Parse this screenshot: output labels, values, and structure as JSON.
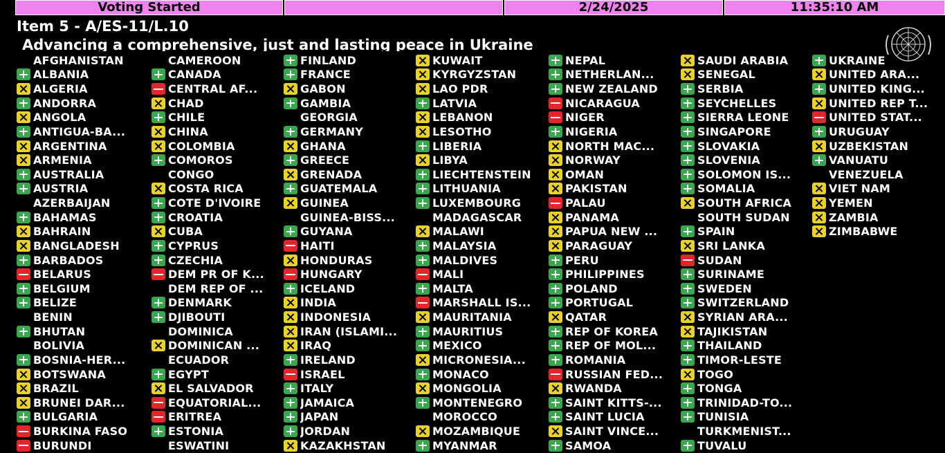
{
  "header": {
    "status": "Voting Started",
    "date": "2/24/2025",
    "time": "11:35:10 AM"
  },
  "item_title": "Item 5 - A/ES-11/L.10",
  "subject": "Advancing a comprehensive, just and lasting peace in Ukraine",
  "colors": {
    "yes": "#37a84e",
    "no": "#e4252a",
    "abstain": "#e8d227",
    "header": "#ef82ef"
  },
  "columns": [
    [
      {
        "name": "AFGHANISTAN",
        "vote": "none"
      },
      {
        "name": "ALBANIA",
        "vote": "yes"
      },
      {
        "name": "ALGERIA",
        "vote": "abstain"
      },
      {
        "name": "ANDORRA",
        "vote": "yes"
      },
      {
        "name": "ANGOLA",
        "vote": "abstain"
      },
      {
        "name": "ANTIGUA-BA...",
        "vote": "yes"
      },
      {
        "name": "ARGENTINA",
        "vote": "abstain"
      },
      {
        "name": "ARMENIA",
        "vote": "abstain"
      },
      {
        "name": "AUSTRALIA",
        "vote": "yes"
      },
      {
        "name": "AUSTRIA",
        "vote": "yes"
      },
      {
        "name": "AZERBAIJAN",
        "vote": "none"
      },
      {
        "name": "BAHAMAS",
        "vote": "yes"
      },
      {
        "name": "BAHRAIN",
        "vote": "abstain"
      },
      {
        "name": "BANGLADESH",
        "vote": "abstain"
      },
      {
        "name": "BARBADOS",
        "vote": "yes"
      },
      {
        "name": "BELARUS",
        "vote": "no"
      },
      {
        "name": "BELGIUM",
        "vote": "yes"
      },
      {
        "name": "BELIZE",
        "vote": "yes"
      },
      {
        "name": "BENIN",
        "vote": "none"
      },
      {
        "name": "BHUTAN",
        "vote": "yes"
      },
      {
        "name": "BOLIVIA",
        "vote": "none"
      },
      {
        "name": "BOSNIA-HER...",
        "vote": "yes"
      },
      {
        "name": "BOTSWANA",
        "vote": "abstain"
      },
      {
        "name": "BRAZIL",
        "vote": "abstain"
      },
      {
        "name": "BRUNEI DAR...",
        "vote": "abstain"
      },
      {
        "name": "BULGARIA",
        "vote": "yes"
      },
      {
        "name": "BURKINA FASO",
        "vote": "no"
      },
      {
        "name": "BURUNDI",
        "vote": "no"
      }
    ],
    [
      {
        "name": "CAMEROON",
        "vote": "none"
      },
      {
        "name": "CANADA",
        "vote": "yes"
      },
      {
        "name": "CENTRAL AF...",
        "vote": "no"
      },
      {
        "name": "CHAD",
        "vote": "abstain"
      },
      {
        "name": "CHILE",
        "vote": "yes"
      },
      {
        "name": "CHINA",
        "vote": "abstain"
      },
      {
        "name": "COLOMBIA",
        "vote": "abstain"
      },
      {
        "name": "COMOROS",
        "vote": "yes"
      },
      {
        "name": "CONGO",
        "vote": "none"
      },
      {
        "name": "COSTA RICA",
        "vote": "abstain"
      },
      {
        "name": "COTE D'IVOIRE",
        "vote": "yes"
      },
      {
        "name": "CROATIA",
        "vote": "yes"
      },
      {
        "name": "CUBA",
        "vote": "abstain"
      },
      {
        "name": "CYPRUS",
        "vote": "yes"
      },
      {
        "name": "CZECHIA",
        "vote": "yes"
      },
      {
        "name": "DEM PR OF K...",
        "vote": "no"
      },
      {
        "name": "DEM REP OF ...",
        "vote": "none"
      },
      {
        "name": "DENMARK",
        "vote": "yes"
      },
      {
        "name": "DJIBOUTI",
        "vote": "yes"
      },
      {
        "name": "DOMINICA",
        "vote": "none"
      },
      {
        "name": "DOMINICAN ...",
        "vote": "abstain"
      },
      {
        "name": "ECUADOR",
        "vote": "none"
      },
      {
        "name": "EGYPT",
        "vote": "yes"
      },
      {
        "name": "EL SALVADOR",
        "vote": "abstain"
      },
      {
        "name": "EQUATORIAL...",
        "vote": "no"
      },
      {
        "name": "ERITREA",
        "vote": "no"
      },
      {
        "name": "ESTONIA",
        "vote": "yes"
      },
      {
        "name": "ESWATINI",
        "vote": "none"
      }
    ],
    [
      {
        "name": "FINLAND",
        "vote": "yes"
      },
      {
        "name": "FRANCE",
        "vote": "yes"
      },
      {
        "name": "GABON",
        "vote": "abstain"
      },
      {
        "name": "GAMBIA",
        "vote": "yes"
      },
      {
        "name": "GEORGIA",
        "vote": "none"
      },
      {
        "name": "GERMANY",
        "vote": "yes"
      },
      {
        "name": "GHANA",
        "vote": "abstain"
      },
      {
        "name": "GREECE",
        "vote": "yes"
      },
      {
        "name": "GRENADA",
        "vote": "abstain"
      },
      {
        "name": "GUATEMALA",
        "vote": "yes"
      },
      {
        "name": "GUINEA",
        "vote": "abstain"
      },
      {
        "name": "GUINEA-BISS...",
        "vote": "none"
      },
      {
        "name": "GUYANA",
        "vote": "yes"
      },
      {
        "name": "HAITI",
        "vote": "no"
      },
      {
        "name": "HONDURAS",
        "vote": "abstain"
      },
      {
        "name": "HUNGARY",
        "vote": "no"
      },
      {
        "name": "ICELAND",
        "vote": "yes"
      },
      {
        "name": "INDIA",
        "vote": "abstain"
      },
      {
        "name": "INDONESIA",
        "vote": "abstain"
      },
      {
        "name": "IRAN (ISLAMI...",
        "vote": "abstain"
      },
      {
        "name": "IRAQ",
        "vote": "abstain"
      },
      {
        "name": "IRELAND",
        "vote": "yes"
      },
      {
        "name": "ISRAEL",
        "vote": "no"
      },
      {
        "name": "ITALY",
        "vote": "yes"
      },
      {
        "name": "JAMAICA",
        "vote": "yes"
      },
      {
        "name": "JAPAN",
        "vote": "yes"
      },
      {
        "name": "JORDAN",
        "vote": "yes"
      },
      {
        "name": "KAZAKHSTAN",
        "vote": "abstain"
      }
    ],
    [
      {
        "name": "KUWAIT",
        "vote": "abstain"
      },
      {
        "name": "KYRGYZSTAN",
        "vote": "abstain"
      },
      {
        "name": "LAO PDR",
        "vote": "abstain"
      },
      {
        "name": "LATVIA",
        "vote": "yes"
      },
      {
        "name": "LEBANON",
        "vote": "abstain"
      },
      {
        "name": "LESOTHO",
        "vote": "abstain"
      },
      {
        "name": "LIBERIA",
        "vote": "yes"
      },
      {
        "name": "LIBYA",
        "vote": "abstain"
      },
      {
        "name": "LIECHTENSTEIN",
        "vote": "yes"
      },
      {
        "name": "LITHUANIA",
        "vote": "yes"
      },
      {
        "name": "LUXEMBOURG",
        "vote": "yes"
      },
      {
        "name": "MADAGASCAR",
        "vote": "none"
      },
      {
        "name": "MALAWI",
        "vote": "abstain"
      },
      {
        "name": "MALAYSIA",
        "vote": "yes"
      },
      {
        "name": "MALDIVES",
        "vote": "yes"
      },
      {
        "name": "MALI",
        "vote": "no"
      },
      {
        "name": "MALTA",
        "vote": "yes"
      },
      {
        "name": "MARSHALL IS...",
        "vote": "no"
      },
      {
        "name": "MAURITANIA",
        "vote": "abstain"
      },
      {
        "name": "MAURITIUS",
        "vote": "yes"
      },
      {
        "name": "MEXICO",
        "vote": "yes"
      },
      {
        "name": "MICRONESIA...",
        "vote": "abstain"
      },
      {
        "name": "MONACO",
        "vote": "yes"
      },
      {
        "name": "MONGOLIA",
        "vote": "abstain"
      },
      {
        "name": "MONTENEGRO",
        "vote": "yes"
      },
      {
        "name": "MOROCCO",
        "vote": "none"
      },
      {
        "name": "MOZAMBIQUE",
        "vote": "abstain"
      },
      {
        "name": "MYANMAR",
        "vote": "yes"
      }
    ],
    [
      {
        "name": "NEPAL",
        "vote": "yes"
      },
      {
        "name": "NETHERLAN...",
        "vote": "yes"
      },
      {
        "name": "NEW ZEALAND",
        "vote": "yes"
      },
      {
        "name": "NICARAGUA",
        "vote": "no"
      },
      {
        "name": "NIGER",
        "vote": "no"
      },
      {
        "name": "NIGERIA",
        "vote": "yes"
      },
      {
        "name": "NORTH MAC...",
        "vote": "abstain"
      },
      {
        "name": "NORWAY",
        "vote": "abstain"
      },
      {
        "name": "OMAN",
        "vote": "abstain"
      },
      {
        "name": "PAKISTAN",
        "vote": "abstain"
      },
      {
        "name": "PALAU",
        "vote": "no"
      },
      {
        "name": "PANAMA",
        "vote": "abstain"
      },
      {
        "name": "PAPUA NEW ...",
        "vote": "abstain"
      },
      {
        "name": "PARAGUAY",
        "vote": "abstain"
      },
      {
        "name": "PERU",
        "vote": "yes"
      },
      {
        "name": "PHILIPPINES",
        "vote": "yes"
      },
      {
        "name": "POLAND",
        "vote": "yes"
      },
      {
        "name": "PORTUGAL",
        "vote": "yes"
      },
      {
        "name": "QATAR",
        "vote": "abstain"
      },
      {
        "name": "REP OF KOREA",
        "vote": "yes"
      },
      {
        "name": "REP OF MOL...",
        "vote": "yes"
      },
      {
        "name": "ROMANIA",
        "vote": "yes"
      },
      {
        "name": "RUSSIAN FED...",
        "vote": "no"
      },
      {
        "name": "RWANDA",
        "vote": "abstain"
      },
      {
        "name": "SAINT KITTS-...",
        "vote": "yes"
      },
      {
        "name": "SAINT LUCIA",
        "vote": "yes"
      },
      {
        "name": "SAINT VINCE...",
        "vote": "abstain"
      },
      {
        "name": "SAMOA",
        "vote": "yes"
      }
    ],
    [
      {
        "name": "SAUDI ARABIA",
        "vote": "abstain"
      },
      {
        "name": "SENEGAL",
        "vote": "abstain"
      },
      {
        "name": "SERBIA",
        "vote": "yes"
      },
      {
        "name": "SEYCHELLES",
        "vote": "yes"
      },
      {
        "name": "SIERRA LEONE",
        "vote": "yes"
      },
      {
        "name": "SINGAPORE",
        "vote": "yes"
      },
      {
        "name": "SLOVAKIA",
        "vote": "yes"
      },
      {
        "name": "SLOVENIA",
        "vote": "yes"
      },
      {
        "name": "SOLOMON IS...",
        "vote": "yes"
      },
      {
        "name": "SOMALIA",
        "vote": "yes"
      },
      {
        "name": "SOUTH AFRICA",
        "vote": "abstain"
      },
      {
        "name": "SOUTH SUDAN",
        "vote": "none"
      },
      {
        "name": "SPAIN",
        "vote": "yes"
      },
      {
        "name": "SRI LANKA",
        "vote": "abstain"
      },
      {
        "name": "SUDAN",
        "vote": "no"
      },
      {
        "name": "SURINAME",
        "vote": "yes"
      },
      {
        "name": "SWEDEN",
        "vote": "yes"
      },
      {
        "name": "SWITZERLAND",
        "vote": "yes"
      },
      {
        "name": "SYRIAN ARA...",
        "vote": "abstain"
      },
      {
        "name": "TAJIKISTAN",
        "vote": "abstain"
      },
      {
        "name": "THAILAND",
        "vote": "yes"
      },
      {
        "name": "TIMOR-LESTE",
        "vote": "yes"
      },
      {
        "name": "TOGO",
        "vote": "abstain"
      },
      {
        "name": "TONGA",
        "vote": "yes"
      },
      {
        "name": "TRINIDAD-TO...",
        "vote": "yes"
      },
      {
        "name": "TUNISIA",
        "vote": "yes"
      },
      {
        "name": "TURKMENIST...",
        "vote": "none"
      },
      {
        "name": "TUVALU",
        "vote": "yes"
      }
    ],
    [
      {
        "name": "UKRAINE",
        "vote": "yes"
      },
      {
        "name": "UNITED ARA...",
        "vote": "abstain"
      },
      {
        "name": "UNITED KING...",
        "vote": "yes"
      },
      {
        "name": "UNITED REP T...",
        "vote": "abstain"
      },
      {
        "name": "UNITED STAT...",
        "vote": "no"
      },
      {
        "name": "URUGUAY",
        "vote": "yes"
      },
      {
        "name": "UZBEKISTAN",
        "vote": "abstain"
      },
      {
        "name": "VANUATU",
        "vote": "yes"
      },
      {
        "name": "VENEZUELA",
        "vote": "none"
      },
      {
        "name": "VIET NAM",
        "vote": "abstain"
      },
      {
        "name": "YEMEN",
        "vote": "abstain"
      },
      {
        "name": "ZAMBIA",
        "vote": "abstain"
      },
      {
        "name": "ZIMBABWE",
        "vote": "abstain"
      }
    ]
  ]
}
